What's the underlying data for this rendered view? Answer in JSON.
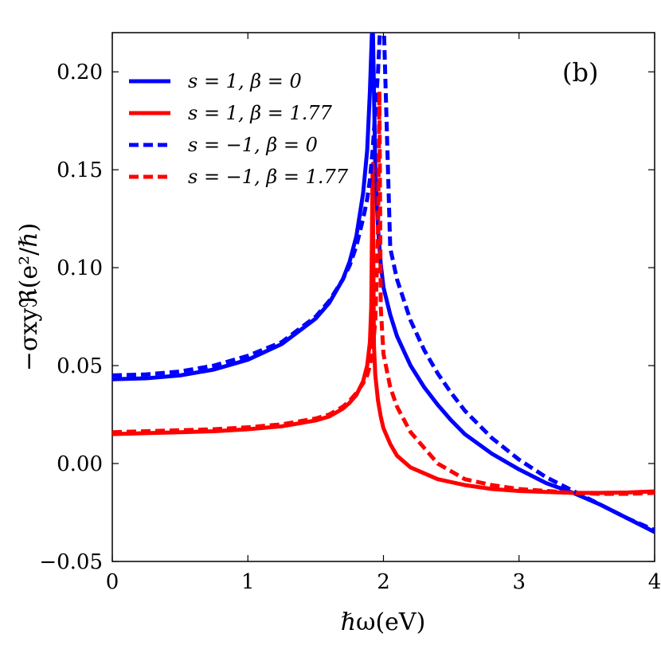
{
  "chart_data": {
    "type": "line",
    "panel_label": "(b)",
    "xlabel": "ℏω(eV)",
    "ylabel": "−σxyℜ(e²/ℏ)",
    "xlim": [
      0,
      4
    ],
    "ylim": [
      -0.05,
      0.22
    ],
    "x_ticks": [
      0,
      1,
      2,
      3,
      4
    ],
    "x_tick_labels": [
      "0",
      "1",
      "2",
      "3",
      "4"
    ],
    "y_ticks": [
      -0.05,
      0.0,
      0.05,
      0.1,
      0.15,
      0.2
    ],
    "y_tick_labels": [
      "−0.05",
      "0.00",
      "0.05",
      "0.10",
      "0.15",
      "0.20"
    ],
    "grid": false,
    "legend_position": "top-left",
    "series": [
      {
        "name": "s = 1, β = 0",
        "color": "#0000ff",
        "dash": "solid",
        "x": [
          0,
          0.25,
          0.5,
          0.75,
          1.0,
          1.25,
          1.5,
          1.6,
          1.7,
          1.75,
          1.8,
          1.85,
          1.88,
          1.9,
          1.92,
          1.94,
          1.96,
          1.98,
          2.0,
          2.05,
          2.1,
          2.2,
          2.3,
          2.4,
          2.5,
          2.6,
          2.8,
          3.0,
          3.2,
          3.4,
          3.6,
          3.8,
          4.0
        ],
        "y": [
          0.043,
          0.0435,
          0.045,
          0.048,
          0.053,
          0.061,
          0.074,
          0.082,
          0.094,
          0.103,
          0.116,
          0.138,
          0.16,
          0.19,
          0.23,
          0.15,
          0.12,
          0.102,
          0.09,
          0.076,
          0.065,
          0.05,
          0.039,
          0.03,
          0.022,
          0.015,
          0.005,
          -0.003,
          -0.01,
          -0.015,
          -0.021,
          -0.028,
          -0.035
        ]
      },
      {
        "name": "s = 1, β = 1.77",
        "color": "#ff0000",
        "dash": "solid",
        "x": [
          0,
          0.25,
          0.5,
          0.75,
          1.0,
          1.25,
          1.5,
          1.6,
          1.7,
          1.75,
          1.8,
          1.85,
          1.88,
          1.9,
          1.91,
          1.92,
          1.93,
          1.94,
          1.96,
          1.98,
          2.0,
          2.05,
          2.1,
          2.2,
          2.4,
          2.6,
          2.8,
          3.0,
          3.2,
          3.4,
          3.6,
          3.8,
          4.0
        ],
        "y": [
          0.015,
          0.0155,
          0.016,
          0.0165,
          0.0175,
          0.019,
          0.022,
          0.024,
          0.028,
          0.031,
          0.035,
          0.042,
          0.05,
          0.062,
          0.08,
          0.153,
          0.06,
          0.045,
          0.032,
          0.024,
          0.018,
          0.01,
          0.004,
          -0.002,
          -0.008,
          -0.011,
          -0.013,
          -0.014,
          -0.0145,
          -0.015,
          -0.015,
          -0.0148,
          -0.0142
        ]
      },
      {
        "name": "s = −1, β = 0",
        "color": "#0000ff",
        "dash": "dashed",
        "x": [
          0,
          0.25,
          0.5,
          0.75,
          1.0,
          1.25,
          1.5,
          1.6,
          1.7,
          1.75,
          1.8,
          1.85,
          1.88,
          1.9,
          1.92,
          1.94,
          1.96,
          1.98,
          2.0,
          2.05,
          2.1,
          2.2,
          2.3,
          2.4,
          2.5,
          2.6,
          2.8,
          3.0,
          3.2,
          3.4,
          3.6,
          3.8,
          4.0
        ],
        "y": [
          0.045,
          0.0455,
          0.047,
          0.05,
          0.055,
          0.062,
          0.075,
          0.083,
          0.094,
          0.101,
          0.111,
          0.125,
          0.135,
          0.145,
          0.16,
          0.18,
          0.2,
          0.23,
          0.23,
          0.11,
          0.094,
          0.073,
          0.058,
          0.046,
          0.036,
          0.027,
          0.013,
          0.002,
          -0.007,
          -0.014,
          -0.021,
          -0.028,
          -0.034
        ]
      },
      {
        "name": "s = −1, β = 1.77",
        "color": "#ff0000",
        "dash": "dashed",
        "x": [
          0,
          0.25,
          0.5,
          0.75,
          1.0,
          1.25,
          1.5,
          1.6,
          1.7,
          1.75,
          1.8,
          1.85,
          1.88,
          1.9,
          1.92,
          1.94,
          1.96,
          1.97,
          1.98,
          2.0,
          2.05,
          2.1,
          2.2,
          2.4,
          2.6,
          2.8,
          3.0,
          3.2,
          3.4,
          3.6,
          3.8,
          4.0
        ],
        "y": [
          0.016,
          0.0165,
          0.017,
          0.0175,
          0.0185,
          0.02,
          0.023,
          0.025,
          0.029,
          0.032,
          0.036,
          0.041,
          0.045,
          0.05,
          0.058,
          0.073,
          0.12,
          0.19,
          0.08,
          0.056,
          0.039,
          0.029,
          0.016,
          0.0,
          -0.008,
          -0.011,
          -0.013,
          -0.014,
          -0.015,
          -0.0155,
          -0.0155,
          -0.015
        ]
      }
    ]
  }
}
